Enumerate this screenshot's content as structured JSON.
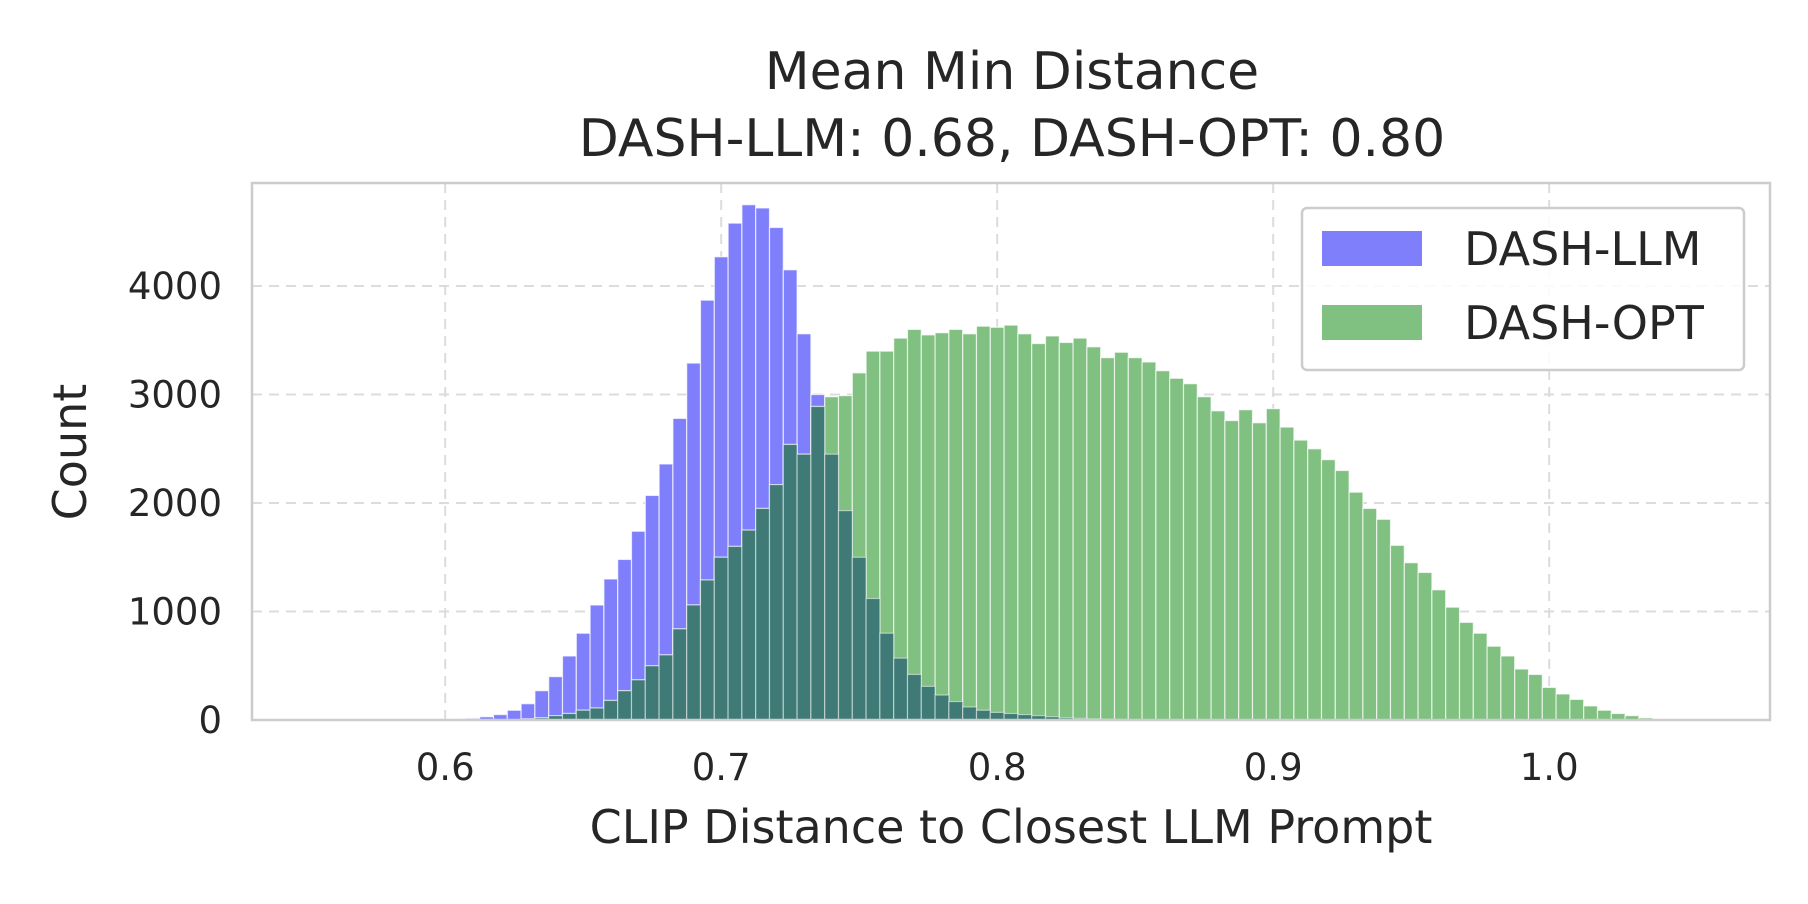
{
  "chart_data": {
    "type": "bar",
    "title": "Mean Min Distance",
    "subtitle": "DASH-LLM: 0.68, DASH-OPT: 0.80",
    "xlabel": "CLIP Distance to Closest LLM Prompt",
    "ylabel": "Count",
    "xlim": [
      0.53,
      1.08
    ],
    "ylim": [
      0,
      4950
    ],
    "xticks": [
      0.6,
      0.7,
      0.8,
      0.9,
      1.0
    ],
    "xtick_labels": [
      "0.6",
      "0.7",
      "0.8",
      "0.9",
      "1.0"
    ],
    "yticks": [
      0,
      1000,
      2000,
      3000,
      4000
    ],
    "ytick_labels": [
      "0",
      "1000",
      "2000",
      "3000",
      "4000"
    ],
    "grid": true,
    "legend_position": "top-right",
    "bin_start": 0.5625,
    "bin_width": 0.005,
    "series": [
      {
        "name": "DASH-LLM",
        "color": "#7f7ffc",
        "values": [
          0,
          0,
          0,
          0,
          0,
          0,
          0,
          5,
          10,
          15,
          30,
          50,
          90,
          150,
          270,
          400,
          590,
          800,
          1060,
          1300,
          1480,
          1740,
          2070,
          2360,
          2780,
          3290,
          3870,
          4270,
          4580,
          4750,
          4720,
          4540,
          4150,
          3560,
          3000,
          2450,
          1930,
          1500,
          1120,
          800,
          570,
          420,
          310,
          230,
          170,
          120,
          90,
          70,
          60,
          50,
          40,
          30,
          20,
          15,
          10,
          8,
          5,
          3,
          2,
          1
        ]
      },
      {
        "name": "DASH-OPT",
        "color": "#80c080",
        "values": [
          0,
          0,
          0,
          0,
          0,
          0,
          0,
          0,
          0,
          0,
          0,
          0,
          0,
          10,
          20,
          40,
          60,
          90,
          110,
          180,
          270,
          370,
          500,
          600,
          840,
          1060,
          1290,
          1500,
          1600,
          1750,
          1950,
          2170,
          2540,
          2450,
          2890,
          2980,
          2990,
          3200,
          3400,
          3400,
          3520,
          3600,
          3550,
          3570,
          3600,
          3560,
          3630,
          3620,
          3640,
          3560,
          3470,
          3540,
          3480,
          3520,
          3440,
          3340,
          3390,
          3340,
          3300,
          3220,
          3150,
          3100,
          2980,
          2850,
          2760,
          2860,
          2740,
          2870,
          2700,
          2580,
          2500,
          2400,
          2300,
          2100,
          1950,
          1850,
          1610,
          1450,
          1360,
          1200,
          1040,
          900,
          800,
          680,
          590,
          470,
          420,
          300,
          240,
          190,
          130,
          90,
          60,
          40,
          20,
          10,
          5,
          3,
          2,
          1
        ]
      }
    ],
    "overlap_color": "#3f7a76"
  }
}
